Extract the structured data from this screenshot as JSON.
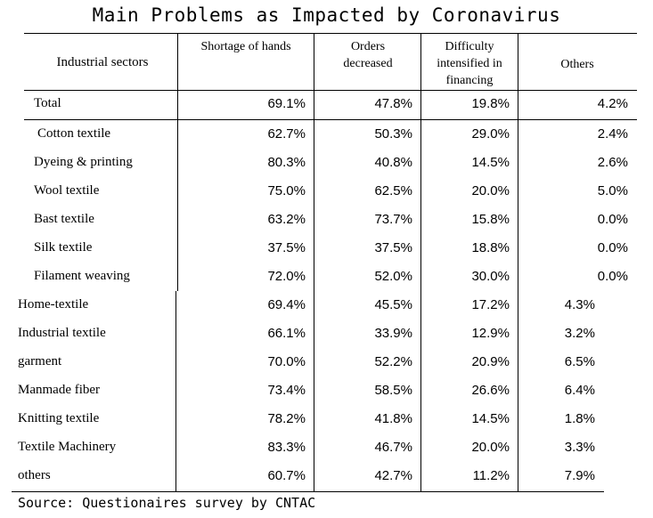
{
  "title": "Main Problems as Impacted by Coronavirus",
  "headers": {
    "sector": "Industrial sectors",
    "col1": "Shortage of hands",
    "col2": "Orders decreased",
    "col3": "Difficulty intensified in financing",
    "col4": "Others"
  },
  "rows": [
    {
      "label": "Total",
      "v": [
        "69.1%",
        "47.8%",
        "19.8%",
        "4.2%"
      ]
    },
    {
      "label": "Cotton textile",
      "v": [
        "62.7%",
        "50.3%",
        "29.0%",
        "2.4%"
      ]
    },
    {
      "label": "Dyeing & printing",
      "v": [
        "80.3%",
        "40.8%",
        "14.5%",
        "2.6%"
      ]
    },
    {
      "label": "Wool textile",
      "v": [
        "75.0%",
        "62.5%",
        "20.0%",
        "5.0%"
      ]
    },
    {
      "label": "Bast textile",
      "v": [
        "63.2%",
        "73.7%",
        "15.8%",
        "0.0%"
      ]
    },
    {
      "label": "Silk textile",
      "v": [
        "37.5%",
        "37.5%",
        "18.8%",
        "0.0%"
      ]
    },
    {
      "label": "Filament weaving",
      "v": [
        "72.0%",
        "52.0%",
        "30.0%",
        "0.0%"
      ]
    },
    {
      "label": "Home-textile",
      "v": [
        "69.4%",
        "45.5%",
        "17.2%",
        "4.3%"
      ]
    },
    {
      "label": "Industrial textile",
      "v": [
        "66.1%",
        "33.9%",
        "12.9%",
        "3.2%"
      ]
    },
    {
      "label": "garment",
      "v": [
        "70.0%",
        "52.2%",
        "20.9%",
        "6.5%"
      ]
    },
    {
      "label": "Manmade fiber",
      "v": [
        "73.4%",
        "58.5%",
        "26.6%",
        "6.4%"
      ]
    },
    {
      "label": "Knitting textile",
      "v": [
        "78.2%",
        "41.8%",
        "14.5%",
        "1.8%"
      ]
    },
    {
      "label": "Textile Machinery",
      "v": [
        "83.3%",
        "46.7%",
        "20.0%",
        "3.3%"
      ]
    },
    {
      "label": "others",
      "v": [
        "60.7%",
        "42.7%",
        "11.2%",
        "7.9%"
      ]
    }
  ],
  "source": "Source: Questionaires survey by CNTAC"
}
